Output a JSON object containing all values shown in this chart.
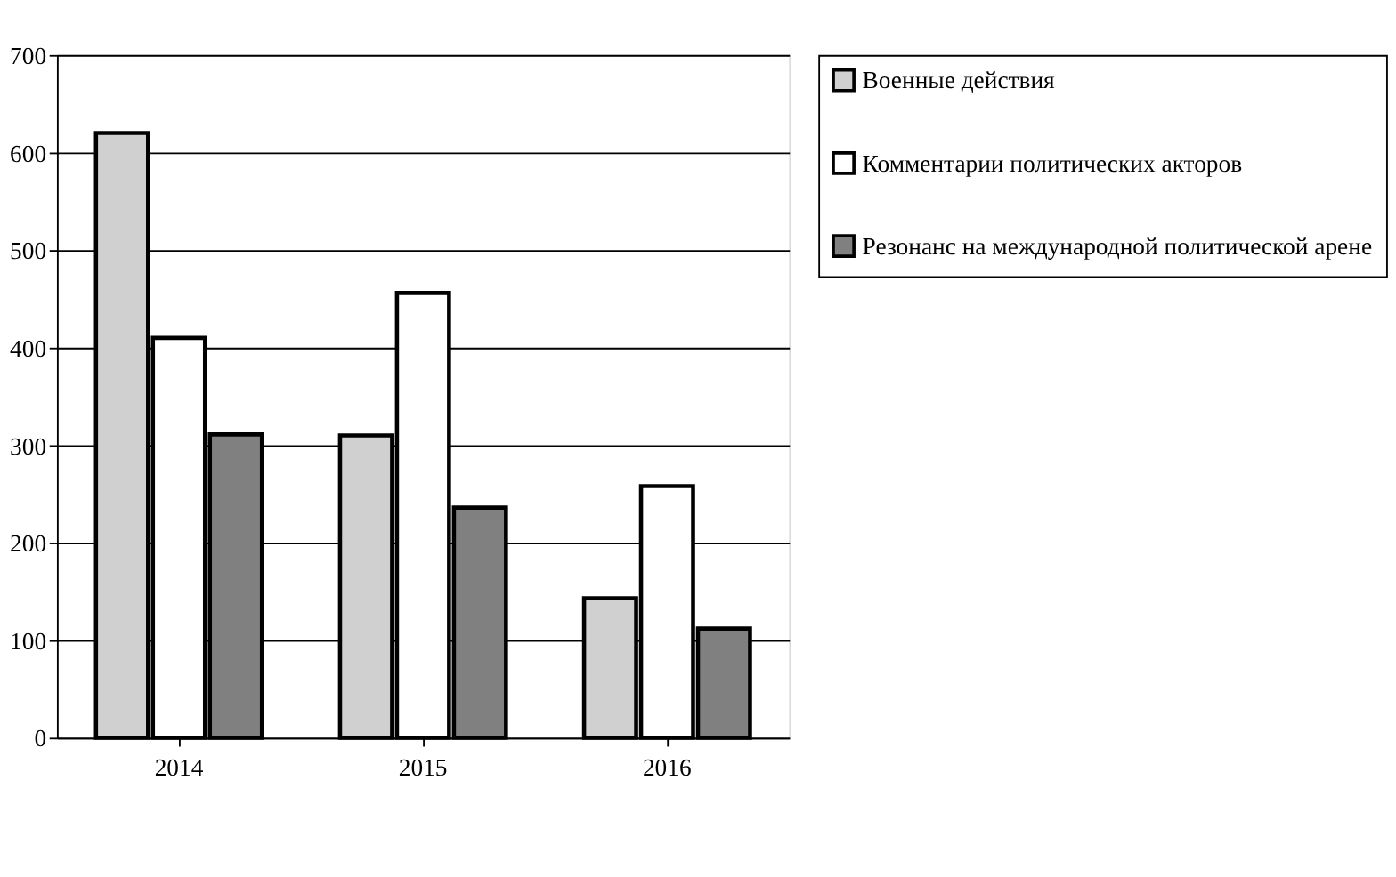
{
  "chart_data": {
    "type": "bar",
    "categories": [
      "2014",
      "2015",
      "2016"
    ],
    "series": [
      {
        "name": "Военные действия",
        "color": "#d0d0d0",
        "values": [
          620,
          310,
          143
        ]
      },
      {
        "name": "Комментарии политических акторов",
        "color": "#ffffff",
        "values": [
          410,
          456,
          258
        ]
      },
      {
        "name": "Резонанс на международной политической арене",
        "color": "#808080",
        "values": [
          311,
          236,
          112
        ]
      }
    ],
    "ylim": [
      0,
      700
    ],
    "yticks": [
      0,
      100,
      200,
      300,
      400,
      500,
      600,
      700
    ],
    "grid": "y",
    "legend": "right"
  }
}
